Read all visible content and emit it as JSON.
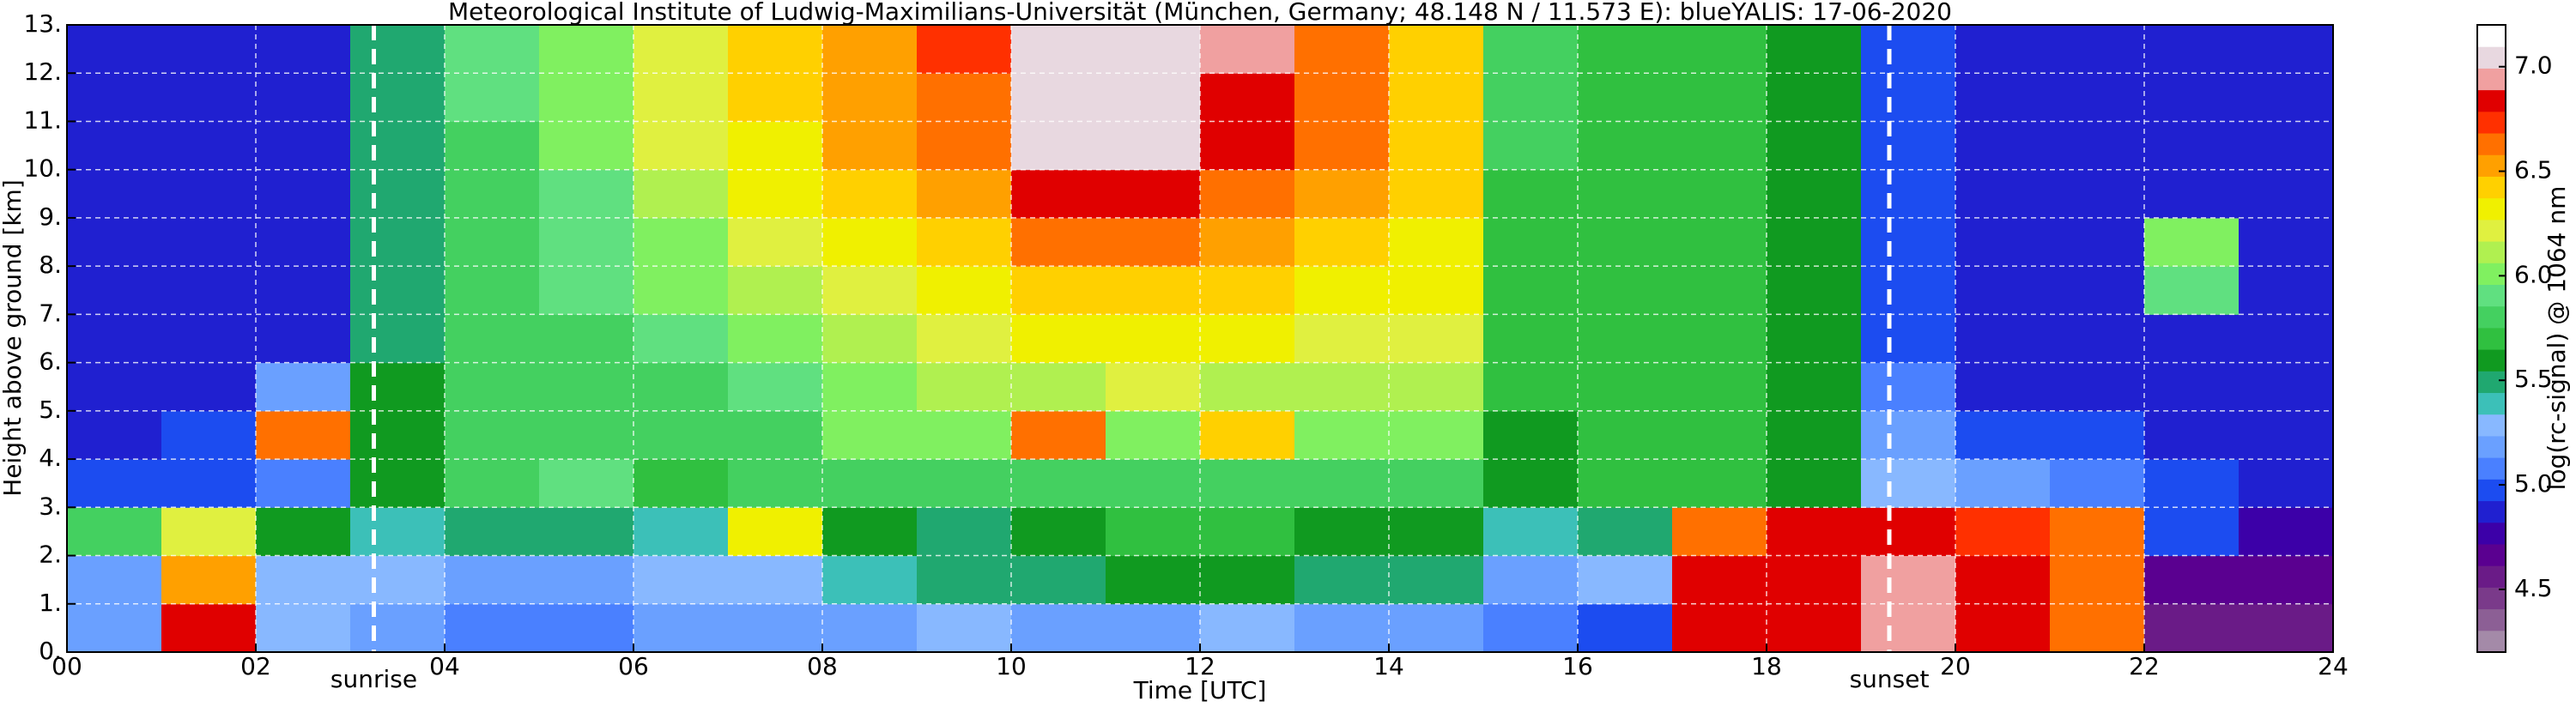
{
  "chart_data": {
    "type": "heatmap",
    "title": "Meteorological Institute of Ludwig-Maximilians-Universität (München, Germany; 48.148 N / 11.573 E):    blueYALIS: 17-06-2020",
    "x_label": "Time [UTC]",
    "y_label": "Height above ground [km]",
    "colorbar_label": "log(rc-signal) @ 1064 nm",
    "xlim": [
      0,
      24
    ],
    "ylim": [
      0,
      13
    ],
    "zlim": [
      4.2,
      7.2
    ],
    "xbins": [
      0,
      1,
      2,
      3,
      4,
      5,
      6,
      7,
      8,
      9,
      10,
      11,
      12,
      13,
      14,
      15,
      16,
      17,
      18,
      19,
      20,
      21,
      22,
      23,
      24
    ],
    "ybins": [
      0,
      1,
      2,
      3,
      4,
      5,
      6,
      7,
      8,
      9,
      10,
      11,
      12,
      13
    ],
    "xticks": [
      {
        "value": 0,
        "label": "00"
      },
      {
        "value": 2,
        "label": "02"
      },
      {
        "value": 4,
        "label": "04"
      },
      {
        "value": 6,
        "label": "06"
      },
      {
        "value": 8,
        "label": "08"
      },
      {
        "value": 10,
        "label": "10"
      },
      {
        "value": 12,
        "label": "12"
      },
      {
        "value": 14,
        "label": "14"
      },
      {
        "value": 16,
        "label": "16"
      },
      {
        "value": 18,
        "label": "18"
      },
      {
        "value": 20,
        "label": "20"
      },
      {
        "value": 22,
        "label": "22"
      },
      {
        "value": 24,
        "label": "24"
      }
    ],
    "yticks": [
      {
        "value": 0,
        "label": "0."
      },
      {
        "value": 1,
        "label": "1."
      },
      {
        "value": 2,
        "label": "2."
      },
      {
        "value": 3,
        "label": "3."
      },
      {
        "value": 4,
        "label": "4."
      },
      {
        "value": 5,
        "label": "5."
      },
      {
        "value": 6,
        "label": "6."
      },
      {
        "value": 7,
        "label": "7."
      },
      {
        "value": 8,
        "label": "8."
      },
      {
        "value": 9,
        "label": "9."
      },
      {
        "value": 10,
        "label": "10."
      },
      {
        "value": 11,
        "label": "11."
      },
      {
        "value": 12,
        "label": "12."
      },
      {
        "value": 13,
        "label": "13."
      }
    ],
    "zticks": [
      4.5,
      {
        "value": 5,
        "label": "5.0"
      },
      5.5,
      {
        "value": 6,
        "label": "6.0"
      },
      6.5,
      {
        "value": 7,
        "label": "7.0"
      }
    ],
    "grid": true,
    "colors": [
      "#a48aa8",
      "#8c5f95",
      "#7a3a8a",
      "#6a1b87",
      "#5a0090",
      "#3c00a8",
      "#2020d0",
      "#1c4cf0",
      "#4a80ff",
      "#6aa0ff",
      "#88b8ff",
      "#3cc0b8",
      "#20a870",
      "#109a20",
      "#30c040",
      "#44d060",
      "#60e080",
      "#80f060",
      "#b0f050",
      "#e0f040",
      "#f0f000",
      "#ffd000",
      "#ffa000",
      "#ff7000",
      "#ff3000",
      "#e00000",
      "#f0a0a0",
      "#e8d8e0",
      "#ffffff"
    ],
    "annotations": [
      {
        "text": "sunrise",
        "x": 3.25
      },
      {
        "text": "sunset",
        "x": 19.3
      }
    ],
    "z": [
      [
        5.2,
        6.8,
        5.3,
        5.2,
        5.1,
        5.1,
        5.2,
        5.2,
        5.2,
        5.3,
        5.2,
        5.2,
        5.3,
        5.2,
        5.2,
        5.1,
        5.0,
        6.8,
        6.8,
        6.9,
        6.8,
        6.6,
        4.6,
        4.6
      ],
      [
        5.2,
        6.5,
        5.3,
        5.3,
        5.2,
        5.2,
        5.3,
        5.3,
        5.4,
        5.5,
        5.5,
        5.6,
        5.6,
        5.5,
        5.5,
        5.2,
        5.3,
        6.8,
        6.8,
        6.9,
        6.8,
        6.6,
        4.7,
        4.7
      ],
      [
        5.8,
        6.2,
        5.6,
        5.4,
        5.5,
        5.5,
        5.4,
        6.3,
        5.6,
        5.5,
        5.6,
        5.7,
        5.7,
        5.6,
        5.6,
        5.4,
        5.5,
        6.6,
        6.8,
        6.8,
        6.7,
        6.6,
        5.0,
        4.8
      ],
      [
        5.0,
        5.0,
        5.1,
        5.6,
        5.8,
        5.9,
        5.7,
        5.8,
        5.8,
        5.8,
        5.8,
        5.8,
        5.8,
        5.8,
        5.8,
        5.6,
        5.7,
        5.7,
        5.6,
        5.3,
        5.2,
        5.1,
        5.0,
        4.9
      ],
      [
        4.9,
        5.0,
        6.6,
        5.6,
        5.8,
        5.8,
        5.8,
        5.8,
        6.0,
        6.0,
        6.6,
        6.0,
        6.4,
        6.0,
        6.0,
        5.6,
        5.7,
        5.7,
        5.6,
        5.2,
        5.0,
        5.0,
        4.9,
        4.9
      ],
      [
        4.9,
        4.9,
        5.2,
        5.6,
        5.8,
        5.8,
        5.8,
        5.9,
        6.0,
        6.1,
        6.1,
        6.2,
        6.1,
        6.1,
        6.1,
        5.7,
        5.7,
        5.7,
        5.6,
        5.1,
        4.9,
        4.9,
        4.9,
        4.9
      ],
      [
        4.9,
        4.9,
        4.9,
        5.5,
        5.8,
        5.8,
        5.9,
        6.0,
        6.1,
        6.2,
        6.3,
        6.3,
        6.3,
        6.2,
        6.2,
        5.7,
        5.7,
        5.7,
        5.6,
        5.0,
        4.9,
        4.9,
        4.9,
        4.9
      ],
      [
        4.9,
        4.9,
        4.9,
        5.5,
        5.8,
        5.9,
        6.0,
        6.1,
        6.2,
        6.3,
        6.4,
        6.4,
        6.4,
        6.3,
        6.3,
        5.7,
        5.7,
        5.7,
        5.6,
        5.0,
        4.9,
        4.9,
        5.9,
        4.9
      ],
      [
        4.9,
        4.9,
        4.9,
        5.5,
        5.8,
        5.9,
        6.0,
        6.2,
        6.3,
        6.4,
        6.6,
        6.6,
        6.5,
        6.4,
        6.3,
        5.7,
        5.7,
        5.7,
        5.6,
        5.0,
        4.9,
        4.9,
        6.0,
        4.9
      ],
      [
        4.9,
        4.9,
        4.9,
        5.5,
        5.8,
        5.9,
        6.1,
        6.3,
        6.4,
        6.5,
        6.8,
        6.8,
        6.6,
        6.5,
        6.4,
        5.7,
        5.7,
        5.7,
        5.6,
        5.0,
        4.9,
        4.9,
        4.9,
        4.9
      ],
      [
        4.9,
        4.9,
        4.9,
        5.5,
        5.8,
        6.0,
        6.2,
        6.3,
        6.5,
        6.6,
        7.0,
        7.0,
        6.8,
        6.6,
        6.4,
        5.8,
        5.7,
        5.7,
        5.6,
        5.0,
        4.9,
        4.9,
        4.9,
        4.9
      ],
      [
        4.9,
        4.9,
        4.9,
        5.5,
        5.9,
        6.0,
        6.2,
        6.4,
        6.5,
        6.6,
        7.0,
        7.0,
        6.8,
        6.6,
        6.4,
        5.8,
        5.7,
        5.7,
        5.6,
        5.0,
        4.9,
        4.9,
        4.9,
        4.9
      ],
      [
        4.9,
        4.9,
        4.9,
        5.5,
        5.9,
        6.0,
        6.2,
        6.4,
        6.5,
        6.7,
        7.0,
        7.0,
        6.9,
        6.6,
        6.4,
        5.8,
        5.7,
        5.7,
        5.6,
        5.0,
        4.9,
        4.9,
        4.9,
        4.9
      ]
    ]
  }
}
